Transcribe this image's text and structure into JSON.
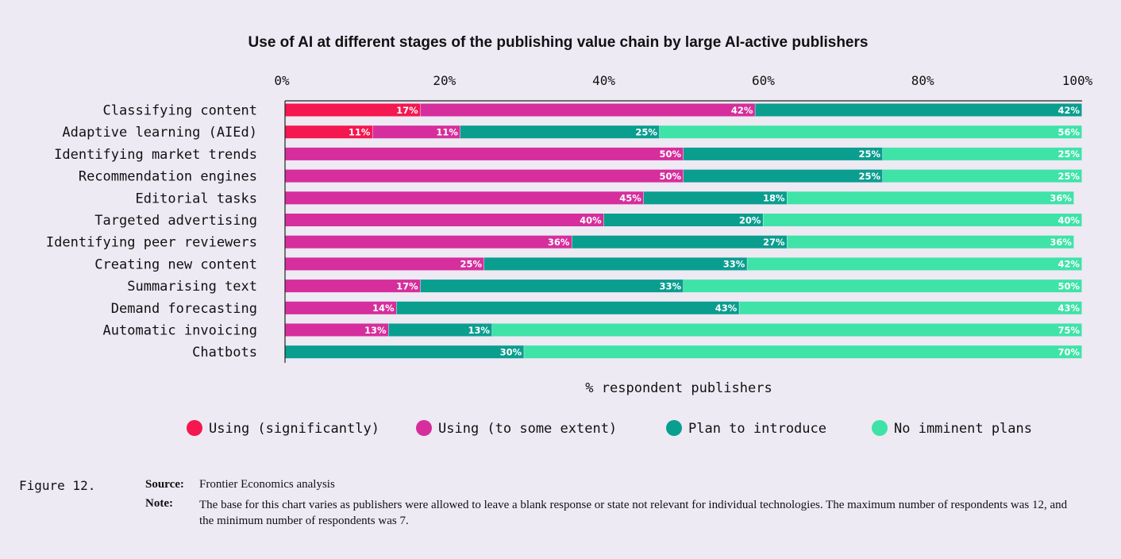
{
  "chart_data": {
    "type": "bar",
    "orientation": "horizontal",
    "stacked": true,
    "title": "Use of AI at different stages of the publishing value chain by large AI-active publishers",
    "xlabel": "% respondent publishers",
    "xlim": [
      0,
      100
    ],
    "x_ticks": [
      "0%",
      "20%",
      "40%",
      "60%",
      "80%",
      "100%"
    ],
    "legend_position": "bottom",
    "categories": [
      "Classifying content",
      "Adaptive learning (AIEd)",
      "Identifying market trends",
      "Recommendation engines",
      "Editorial tasks",
      "Targeted advertising",
      "Identifying peer reviewers",
      "Creating new content",
      "Summarising text",
      "Demand forecasting",
      "Automatic invoicing",
      "Chatbots"
    ],
    "series": [
      {
        "name": "Using (significantly)",
        "color": "#f5174f",
        "values": [
          17,
          11,
          0,
          0,
          0,
          0,
          0,
          0,
          0,
          0,
          0,
          0
        ]
      },
      {
        "name": "Using (to some extent)",
        "color": "#d62e9c",
        "values": [
          42,
          11,
          50,
          50,
          45,
          40,
          36,
          25,
          17,
          14,
          13,
          0
        ]
      },
      {
        "name": "Plan to introduce",
        "color": "#0a9e8f",
        "values": [
          42,
          25,
          25,
          25,
          18,
          20,
          27,
          33,
          33,
          43,
          13,
          30
        ]
      },
      {
        "name": "No imminent plans",
        "color": "#3fe3a8",
        "values": [
          0,
          56,
          25,
          25,
          36,
          40,
          36,
          42,
          50,
          43,
          75,
          70
        ]
      }
    ]
  },
  "footer": {
    "figure_label": "Figure 12.",
    "source_key": "Source:",
    "source_text": "Frontier Economics analysis",
    "note_key": "Note:",
    "note_text": "The base for this chart varies as publishers were allowed to leave a blank response or state not relevant for individual technologies. The maximum number of respondents was 12, and the minimum number of respondents was 7."
  }
}
